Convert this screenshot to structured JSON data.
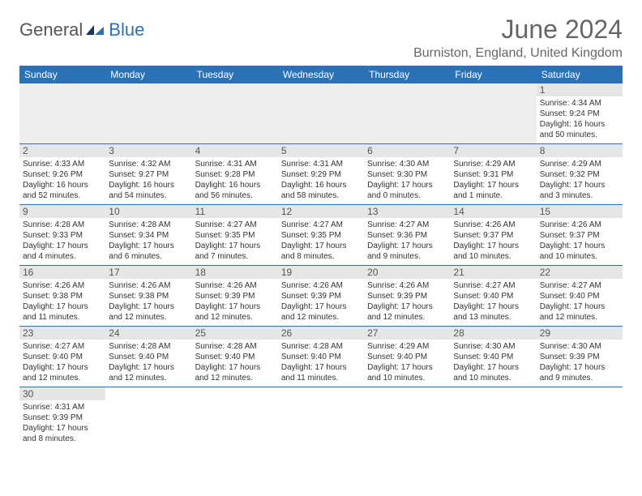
{
  "logo": {
    "text1": "General",
    "text2": "Blue"
  },
  "title": {
    "month": "June 2024",
    "location": "Burniston, England, United Kingdom"
  },
  "colors": {
    "header_bg": "#2a71b8",
    "header_fg": "#ffffff",
    "day_header_bg": "#e6e6e6",
    "border": "#2a71b8"
  },
  "weekdays": [
    "Sunday",
    "Monday",
    "Tuesday",
    "Wednesday",
    "Thursday",
    "Friday",
    "Saturday"
  ],
  "weeks": [
    [
      null,
      null,
      null,
      null,
      null,
      null,
      {
        "num": "1",
        "sunrise": "Sunrise: 4:34 AM",
        "sunset": "Sunset: 9:24 PM",
        "daylight": "Daylight: 16 hours and 50 minutes."
      }
    ],
    [
      {
        "num": "2",
        "sunrise": "Sunrise: 4:33 AM",
        "sunset": "Sunset: 9:26 PM",
        "daylight": "Daylight: 16 hours and 52 minutes."
      },
      {
        "num": "3",
        "sunrise": "Sunrise: 4:32 AM",
        "sunset": "Sunset: 9:27 PM",
        "daylight": "Daylight: 16 hours and 54 minutes."
      },
      {
        "num": "4",
        "sunrise": "Sunrise: 4:31 AM",
        "sunset": "Sunset: 9:28 PM",
        "daylight": "Daylight: 16 hours and 56 minutes."
      },
      {
        "num": "5",
        "sunrise": "Sunrise: 4:31 AM",
        "sunset": "Sunset: 9:29 PM",
        "daylight": "Daylight: 16 hours and 58 minutes."
      },
      {
        "num": "6",
        "sunrise": "Sunrise: 4:30 AM",
        "sunset": "Sunset: 9:30 PM",
        "daylight": "Daylight: 17 hours and 0 minutes."
      },
      {
        "num": "7",
        "sunrise": "Sunrise: 4:29 AM",
        "sunset": "Sunset: 9:31 PM",
        "daylight": "Daylight: 17 hours and 1 minute."
      },
      {
        "num": "8",
        "sunrise": "Sunrise: 4:29 AM",
        "sunset": "Sunset: 9:32 PM",
        "daylight": "Daylight: 17 hours and 3 minutes."
      }
    ],
    [
      {
        "num": "9",
        "sunrise": "Sunrise: 4:28 AM",
        "sunset": "Sunset: 9:33 PM",
        "daylight": "Daylight: 17 hours and 4 minutes."
      },
      {
        "num": "10",
        "sunrise": "Sunrise: 4:28 AM",
        "sunset": "Sunset: 9:34 PM",
        "daylight": "Daylight: 17 hours and 6 minutes."
      },
      {
        "num": "11",
        "sunrise": "Sunrise: 4:27 AM",
        "sunset": "Sunset: 9:35 PM",
        "daylight": "Daylight: 17 hours and 7 minutes."
      },
      {
        "num": "12",
        "sunrise": "Sunrise: 4:27 AM",
        "sunset": "Sunset: 9:35 PM",
        "daylight": "Daylight: 17 hours and 8 minutes."
      },
      {
        "num": "13",
        "sunrise": "Sunrise: 4:27 AM",
        "sunset": "Sunset: 9:36 PM",
        "daylight": "Daylight: 17 hours and 9 minutes."
      },
      {
        "num": "14",
        "sunrise": "Sunrise: 4:26 AM",
        "sunset": "Sunset: 9:37 PM",
        "daylight": "Daylight: 17 hours and 10 minutes."
      },
      {
        "num": "15",
        "sunrise": "Sunrise: 4:26 AM",
        "sunset": "Sunset: 9:37 PM",
        "daylight": "Daylight: 17 hours and 10 minutes."
      }
    ],
    [
      {
        "num": "16",
        "sunrise": "Sunrise: 4:26 AM",
        "sunset": "Sunset: 9:38 PM",
        "daylight": "Daylight: 17 hours and 11 minutes."
      },
      {
        "num": "17",
        "sunrise": "Sunrise: 4:26 AM",
        "sunset": "Sunset: 9:38 PM",
        "daylight": "Daylight: 17 hours and 12 minutes."
      },
      {
        "num": "18",
        "sunrise": "Sunrise: 4:26 AM",
        "sunset": "Sunset: 9:39 PM",
        "daylight": "Daylight: 17 hours and 12 minutes."
      },
      {
        "num": "19",
        "sunrise": "Sunrise: 4:26 AM",
        "sunset": "Sunset: 9:39 PM",
        "daylight": "Daylight: 17 hours and 12 minutes."
      },
      {
        "num": "20",
        "sunrise": "Sunrise: 4:26 AM",
        "sunset": "Sunset: 9:39 PM",
        "daylight": "Daylight: 17 hours and 12 minutes."
      },
      {
        "num": "21",
        "sunrise": "Sunrise: 4:27 AM",
        "sunset": "Sunset: 9:40 PM",
        "daylight": "Daylight: 17 hours and 13 minutes."
      },
      {
        "num": "22",
        "sunrise": "Sunrise: 4:27 AM",
        "sunset": "Sunset: 9:40 PM",
        "daylight": "Daylight: 17 hours and 12 minutes."
      }
    ],
    [
      {
        "num": "23",
        "sunrise": "Sunrise: 4:27 AM",
        "sunset": "Sunset: 9:40 PM",
        "daylight": "Daylight: 17 hours and 12 minutes."
      },
      {
        "num": "24",
        "sunrise": "Sunrise: 4:28 AM",
        "sunset": "Sunset: 9:40 PM",
        "daylight": "Daylight: 17 hours and 12 minutes."
      },
      {
        "num": "25",
        "sunrise": "Sunrise: 4:28 AM",
        "sunset": "Sunset: 9:40 PM",
        "daylight": "Daylight: 17 hours and 12 minutes."
      },
      {
        "num": "26",
        "sunrise": "Sunrise: 4:28 AM",
        "sunset": "Sunset: 9:40 PM",
        "daylight": "Daylight: 17 hours and 11 minutes."
      },
      {
        "num": "27",
        "sunrise": "Sunrise: 4:29 AM",
        "sunset": "Sunset: 9:40 PM",
        "daylight": "Daylight: 17 hours and 10 minutes."
      },
      {
        "num": "28",
        "sunrise": "Sunrise: 4:30 AM",
        "sunset": "Sunset: 9:40 PM",
        "daylight": "Daylight: 17 hours and 10 minutes."
      },
      {
        "num": "29",
        "sunrise": "Sunrise: 4:30 AM",
        "sunset": "Sunset: 9:39 PM",
        "daylight": "Daylight: 17 hours and 9 minutes."
      }
    ],
    [
      {
        "num": "30",
        "sunrise": "Sunrise: 4:31 AM",
        "sunset": "Sunset: 9:39 PM",
        "daylight": "Daylight: 17 hours and 8 minutes."
      },
      null,
      null,
      null,
      null,
      null,
      null
    ]
  ]
}
